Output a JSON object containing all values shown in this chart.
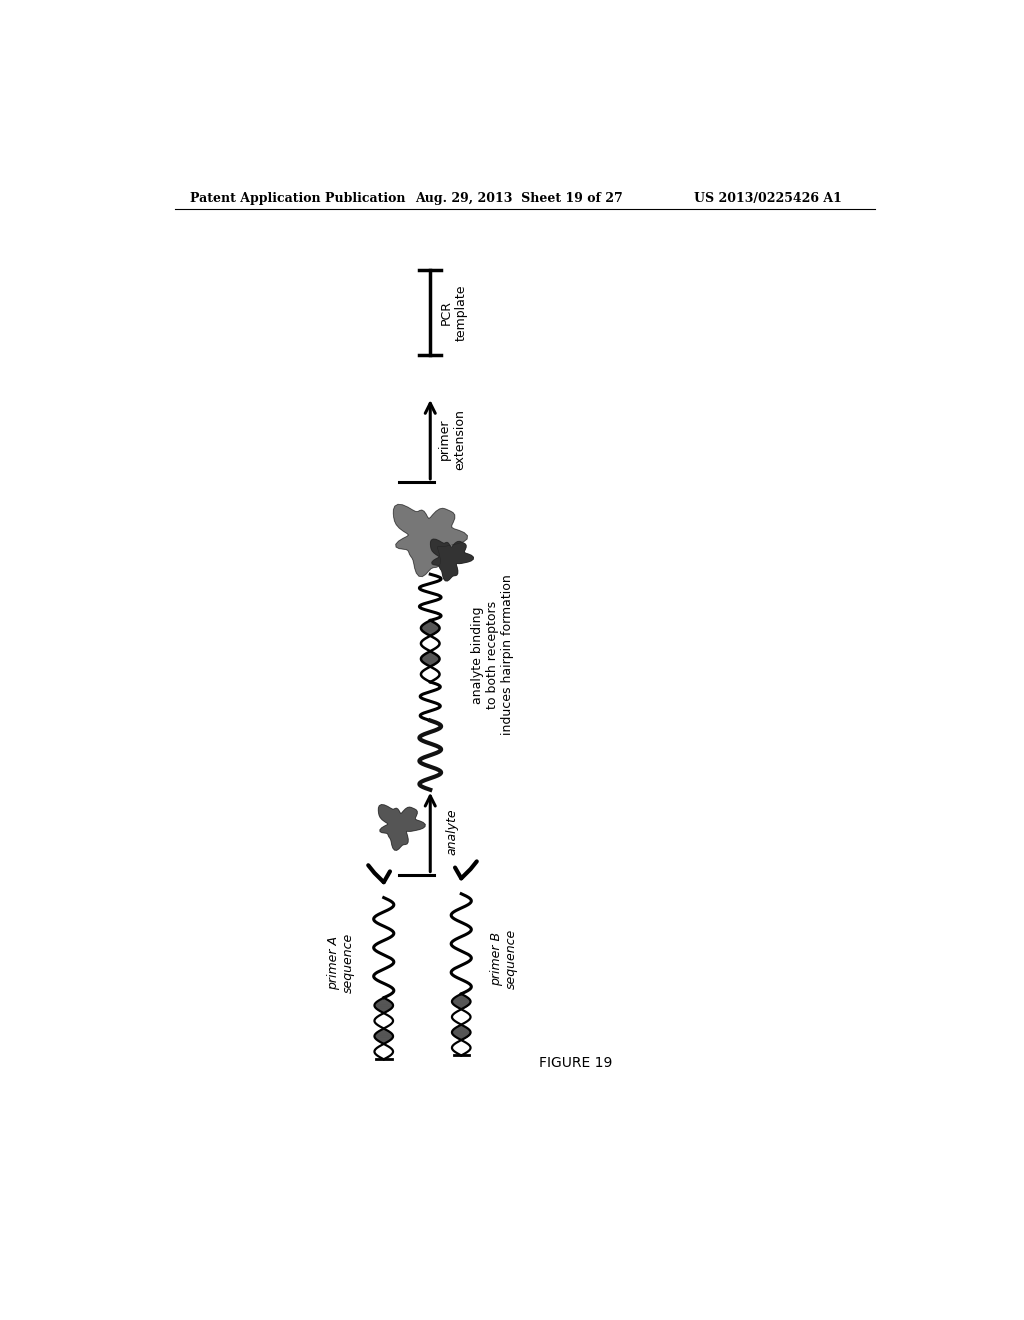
{
  "bg_color": "#ffffff",
  "header_left": "Patent Application Publication",
  "header_mid": "Aug. 29, 2013  Sheet 19 of 27",
  "header_right": "US 2013/0225426 A1",
  "figure_label": "FIGURE 19",
  "label_primer_A": "primer A\nsequence",
  "label_primer_B": "primer B\nsequence",
  "label_analyte": "analyte",
  "label_binding": "analyte binding\nto both receptors\ninduces hairpin formation",
  "label_extension": "primer\nextension",
  "label_template": "PCR\ntemplate",
  "text_color": "#000000",
  "header_fontsize": 9,
  "label_fontsize": 9,
  "fig_width": 10.24,
  "fig_height": 13.2,
  "dpi": 100
}
